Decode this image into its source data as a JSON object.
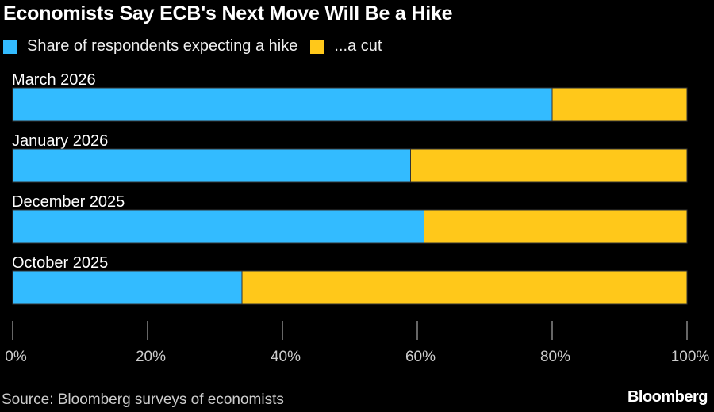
{
  "chart_data": {
    "type": "bar",
    "orientation": "horizontal",
    "stacked": true,
    "title": "Economists Say ECB's Next Move Will Be a Hike",
    "categories": [
      "March 2026",
      "January 2026",
      "December 2025",
      "October 2025"
    ],
    "series": [
      {
        "name": "Share of respondents expecting a hike",
        "color": "#33bbff",
        "values": [
          80,
          59,
          61,
          34
        ]
      },
      {
        "name": "...a cut",
        "color": "#ffc81a",
        "values": [
          20,
          41,
          39,
          66
        ]
      }
    ],
    "xlim": [
      0,
      100
    ],
    "xticks": [
      0,
      20,
      40,
      60,
      80,
      100
    ],
    "xtick_labels": [
      "0%",
      "20%",
      "40%",
      "60%",
      "80%",
      "100%"
    ],
    "legend": "top-left",
    "grid": false
  },
  "footer": {
    "source": "Source: Bloomberg surveys of economists",
    "brand": "Bloomberg"
  }
}
